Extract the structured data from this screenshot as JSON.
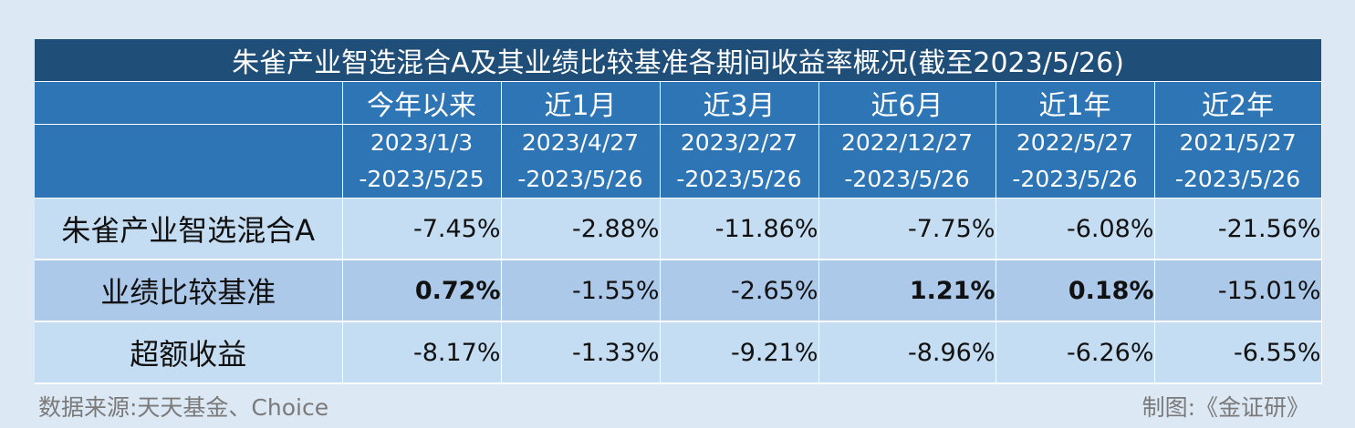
{
  "chart_data": {
    "type": "table",
    "title": "朱雀产业智选混合A及其业绩比较基准各期间收益率概况(截至2023/5/26)",
    "columns": [
      {
        "period": "今年以来",
        "start": "2023/1/3",
        "end": "-2023/5/25"
      },
      {
        "period": "近1月",
        "start": "2023/4/27",
        "end": "-2023/5/26"
      },
      {
        "period": "近3月",
        "start": "2023/2/27",
        "end": "-2023/5/26"
      },
      {
        "period": "近6月",
        "start": "2022/12/27",
        "end": "-2023/5/26"
      },
      {
        "period": "近1年",
        "start": "2022/5/27",
        "end": "-2023/5/26"
      },
      {
        "period": "近2年",
        "start": "2021/5/27",
        "end": "-2023/5/26"
      }
    ],
    "rows": [
      {
        "label": "朱雀产业智选混合A",
        "values": [
          "-7.45%",
          "-2.88%",
          "-11.86%",
          "-7.75%",
          "-6.08%",
          "-21.56%"
        ],
        "bold": [
          false,
          false,
          false,
          false,
          false,
          false
        ]
      },
      {
        "label": "业绩比较基准",
        "values": [
          "0.72%",
          "-1.55%",
          "-2.65%",
          "1.21%",
          "0.18%",
          "-15.01%"
        ],
        "bold": [
          true,
          false,
          false,
          true,
          true,
          false
        ]
      },
      {
        "label": "超额收益",
        "values": [
          "-8.17%",
          "-1.33%",
          "-9.21%",
          "-8.96%",
          "-6.26%",
          "-6.55%"
        ],
        "bold": [
          false,
          false,
          false,
          false,
          false,
          false
        ]
      }
    ]
  },
  "footer": {
    "source": "数据来源:天天基金、Choice",
    "maker": "制图:《金证研》"
  },
  "colors": {
    "title_bg": "#1f4e79",
    "header_bg": "#2e75b6",
    "row_light": "#c5ddf2",
    "row_dark": "#acc9ea",
    "page_bg": "#dce8f4"
  }
}
